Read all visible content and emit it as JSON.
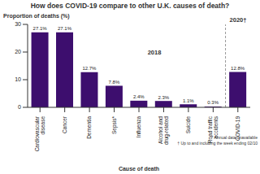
{
  "chart_data": {
    "type": "bar",
    "title": "How does COVID-19 compare to other U.K. causes of death?",
    "y_label": "Proportion of deaths (%)",
    "x_label": "Cause of death",
    "categories": [
      "Cardiovascular disease",
      "Cancer",
      "Dementia",
      "Sepsis*",
      "Influenza",
      "Alcohol and drug-related",
      "Suicide",
      "Road traffic accidents",
      "COVID-19"
    ],
    "values": [
      27.1,
      27.1,
      12.7,
      7.8,
      2.4,
      2.3,
      1.1,
      0.3,
      12.8
    ],
    "value_labels": [
      "27.1%",
      "27.1%",
      "12.7%",
      "7.8%",
      "2.4%",
      "2.3%",
      "1.1%",
      "0.3%",
      "12.8%"
    ],
    "color": "#3d0e6e",
    "ylim": [
      0,
      30
    ],
    "yticks": [
      0,
      10,
      20,
      30
    ],
    "grid": false,
    "data_labels": true,
    "group_labels": [
      "2018",
      "2020†"
    ],
    "footnotes": [
      "* Annual data unavailable",
      "† Up to and including the week ending 02/10"
    ]
  }
}
